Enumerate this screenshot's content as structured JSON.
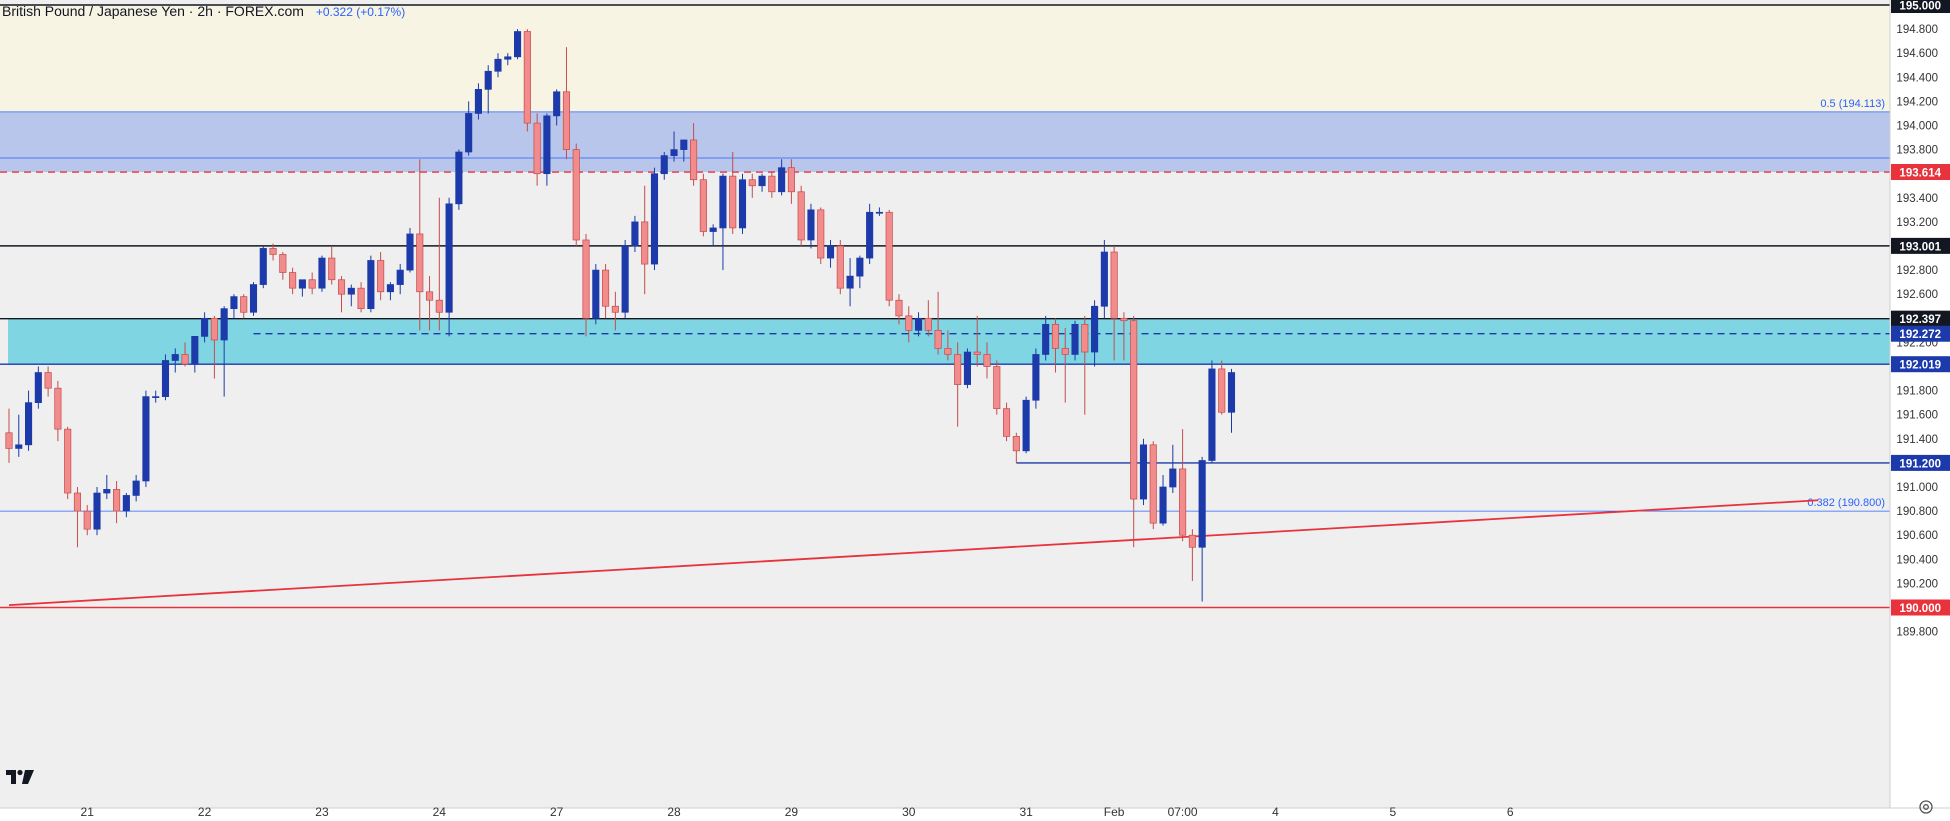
{
  "header": {
    "title": "British Pound / Japanese Yen · 2h · FOREX.com",
    "change": "+0.322 (+0.17%)"
  },
  "icons": {
    "logo": "tradingview-logo-icon",
    "settings": "gear-icon"
  },
  "colors": {
    "bull": "#1c3aa9",
    "bear": "#f28b8b",
    "bear_border": "#c54b4b",
    "supply_zone": "#f7f4e3",
    "resistance_zone": "#b9c6ec",
    "support_zone": "#7fd6e2",
    "trendline": "#e8323c"
  },
  "chart_data": {
    "type": "candlestick",
    "symbol": "GBPJPY",
    "timeframe": "2h",
    "ylim": [
      189.8,
      195.0
    ],
    "y_ticks": [
      "195.000",
      "194.800",
      "194.600",
      "194.400",
      "194.200",
      "194.000",
      "193.800",
      "193.600",
      "193.400",
      "193.200",
      "193.000",
      "192.800",
      "192.600",
      "192.400",
      "192.200",
      "192.000",
      "191.800",
      "191.600",
      "191.400",
      "191.200",
      "191.000",
      "190.800",
      "190.600",
      "190.400",
      "190.200",
      "190.000",
      "189.800"
    ],
    "x_ticks": [
      "21",
      "22",
      "23",
      "24",
      "27",
      "28",
      "29",
      "30",
      "31",
      "Feb",
      "07:00",
      "4",
      "5",
      "6"
    ],
    "zones": [
      {
        "from": 194.113,
        "to": 195.0,
        "color": "#f7f4e3"
      },
      {
        "from": 193.614,
        "to": 194.113,
        "color": "#b9c6ec"
      },
      {
        "from": 192.019,
        "to": 192.397,
        "color": "#7fd6e2"
      }
    ],
    "levels": [
      {
        "value": 195.0,
        "label": "195.000",
        "style": "solid",
        "color": "#131722",
        "badge": "#131722"
      },
      {
        "value": 194.113,
        "annotation": "0.5 (194.113)",
        "style": "thin",
        "color": "#2962ff"
      },
      {
        "value": 193.73,
        "style": "thin",
        "color": "#2962ff"
      },
      {
        "value": 193.614,
        "label": "193.614",
        "style": "dashed",
        "color": "#e8323c",
        "badge": "#e8323c"
      },
      {
        "value": 193.001,
        "label": "193.001",
        "style": "solid",
        "color": "#131722",
        "badge": "#131722"
      },
      {
        "value": 192.397,
        "label": "192.397",
        "style": "solid",
        "color": "#131722",
        "badge": "#131722"
      },
      {
        "value": 192.272,
        "label": "192.272",
        "style": "dashed",
        "color": "#1c3aa9",
        "badge": "#1c3aa9"
      },
      {
        "value": 192.019,
        "label": "192.019",
        "style": "solid",
        "color": "#1c3aa9",
        "badge": "#1c3aa9"
      },
      {
        "value": 191.2,
        "label": "191.200",
        "style": "solid",
        "color": "#1c3aa9",
        "badge": "#1c3aa9"
      },
      {
        "value": 190.8,
        "annotation": "0.382 (190.800)",
        "style": "thin",
        "color": "#2962ff"
      },
      {
        "value": 190.0,
        "label": "190.000",
        "style": "solid",
        "color": "#e8323c",
        "badge": "#e8323c"
      }
    ],
    "trendline": {
      "start": {
        "bar": 0,
        "price": 190.02
      },
      "end": {
        "bar": 185,
        "price": 190.89
      }
    },
    "candles": [
      {
        "o": 191.45,
        "h": 191.65,
        "l": 191.2,
        "c": 191.32
      },
      {
        "o": 191.32,
        "h": 191.6,
        "l": 191.25,
        "c": 191.35
      },
      {
        "o": 191.35,
        "h": 191.8,
        "l": 191.3,
        "c": 191.7
      },
      {
        "o": 191.7,
        "h": 192.0,
        "l": 191.65,
        "c": 191.95
      },
      {
        "o": 191.95,
        "h": 192.0,
        "l": 191.75,
        "c": 191.82
      },
      {
        "o": 191.82,
        "h": 191.88,
        "l": 191.38,
        "c": 191.48
      },
      {
        "o": 191.48,
        "h": 191.5,
        "l": 190.9,
        "c": 190.95
      },
      {
        "o": 190.95,
        "h": 191.0,
        "l": 190.5,
        "c": 190.8
      },
      {
        "o": 190.8,
        "h": 190.85,
        "l": 190.6,
        "c": 190.65
      },
      {
        "o": 190.65,
        "h": 191.0,
        "l": 190.6,
        "c": 190.95
      },
      {
        "o": 190.95,
        "h": 191.1,
        "l": 190.9,
        "c": 190.98
      },
      {
        "o": 190.98,
        "h": 191.05,
        "l": 190.7,
        "c": 190.8
      },
      {
        "o": 190.8,
        "h": 190.95,
        "l": 190.75,
        "c": 190.93
      },
      {
        "o": 190.93,
        "h": 191.1,
        "l": 190.88,
        "c": 191.05
      },
      {
        "o": 191.05,
        "h": 191.8,
        "l": 191.0,
        "c": 191.75
      },
      {
        "o": 191.75,
        "h": 191.8,
        "l": 191.7,
        "c": 191.75
      },
      {
        "o": 191.75,
        "h": 192.1,
        "l": 191.72,
        "c": 192.05
      },
      {
        "o": 192.05,
        "h": 192.15,
        "l": 191.95,
        "c": 192.1
      },
      {
        "o": 192.1,
        "h": 192.2,
        "l": 192.0,
        "c": 192.02
      },
      {
        "o": 192.02,
        "h": 192.25,
        "l": 191.95,
        "c": 192.25
      },
      {
        "o": 192.25,
        "h": 192.45,
        "l": 192.2,
        "c": 192.4
      },
      {
        "o": 192.4,
        "h": 192.42,
        "l": 191.9,
        "c": 192.22
      },
      {
        "o": 192.22,
        "h": 192.5,
        "l": 191.75,
        "c": 192.48
      },
      {
        "o": 192.48,
        "h": 192.6,
        "l": 192.4,
        "c": 192.58
      },
      {
        "o": 192.58,
        "h": 192.6,
        "l": 192.4,
        "c": 192.45
      },
      {
        "o": 192.45,
        "h": 192.7,
        "l": 192.42,
        "c": 192.68
      },
      {
        "o": 192.68,
        "h": 193.0,
        "l": 192.65,
        "c": 192.98
      },
      {
        "o": 192.98,
        "h": 193.02,
        "l": 192.88,
        "c": 192.93
      },
      {
        "o": 192.93,
        "h": 192.95,
        "l": 192.72,
        "c": 192.78
      },
      {
        "o": 192.78,
        "h": 192.82,
        "l": 192.6,
        "c": 192.65
      },
      {
        "o": 192.65,
        "h": 192.72,
        "l": 192.58,
        "c": 192.72
      },
      {
        "o": 192.72,
        "h": 192.78,
        "l": 192.6,
        "c": 192.65
      },
      {
        "o": 192.65,
        "h": 192.92,
        "l": 192.62,
        "c": 192.9
      },
      {
        "o": 192.9,
        "h": 193.0,
        "l": 192.68,
        "c": 192.72
      },
      {
        "o": 192.72,
        "h": 192.75,
        "l": 192.45,
        "c": 192.6
      },
      {
        "o": 192.6,
        "h": 192.68,
        "l": 192.5,
        "c": 192.65
      },
      {
        "o": 192.65,
        "h": 192.7,
        "l": 192.45,
        "c": 192.48
      },
      {
        "o": 192.48,
        "h": 192.92,
        "l": 192.45,
        "c": 192.88
      },
      {
        "o": 192.88,
        "h": 192.95,
        "l": 192.55,
        "c": 192.62
      },
      {
        "o": 192.62,
        "h": 192.7,
        "l": 192.55,
        "c": 192.68
      },
      {
        "o": 192.68,
        "h": 192.85,
        "l": 192.6,
        "c": 192.8
      },
      {
        "o": 192.8,
        "h": 193.15,
        "l": 192.78,
        "c": 193.1
      },
      {
        "o": 193.1,
        "h": 193.72,
        "l": 192.3,
        "c": 192.62
      },
      {
        "o": 192.62,
        "h": 192.75,
        "l": 192.3,
        "c": 192.55
      },
      {
        "o": 192.55,
        "h": 193.4,
        "l": 192.3,
        "c": 192.45
      },
      {
        "o": 192.45,
        "h": 193.4,
        "l": 192.25,
        "c": 193.35
      },
      {
        "o": 193.35,
        "h": 193.8,
        "l": 193.3,
        "c": 193.78
      },
      {
        "o": 193.78,
        "h": 194.2,
        "l": 193.75,
        "c": 194.1
      },
      {
        "o": 194.1,
        "h": 194.35,
        "l": 194.05,
        "c": 194.3
      },
      {
        "o": 194.3,
        "h": 194.5,
        "l": 194.1,
        "c": 194.45
      },
      {
        "o": 194.45,
        "h": 194.6,
        "l": 194.4,
        "c": 194.55
      },
      {
        "o": 194.55,
        "h": 194.6,
        "l": 194.5,
        "c": 194.57
      },
      {
        "o": 194.57,
        "h": 194.8,
        "l": 194.55,
        "c": 194.78
      },
      {
        "o": 194.78,
        "h": 194.8,
        "l": 193.95,
        "c": 194.02
      },
      {
        "o": 194.02,
        "h": 194.1,
        "l": 193.5,
        "c": 193.6
      },
      {
        "o": 193.6,
        "h": 194.1,
        "l": 193.5,
        "c": 194.08
      },
      {
        "o": 194.08,
        "h": 194.3,
        "l": 194.0,
        "c": 194.28
      },
      {
        "o": 194.28,
        "h": 194.65,
        "l": 193.72,
        "c": 193.8
      },
      {
        "o": 193.8,
        "h": 193.85,
        "l": 193.0,
        "c": 193.05
      },
      {
        "o": 193.05,
        "h": 193.1,
        "l": 192.25,
        "c": 192.4
      },
      {
        "o": 192.4,
        "h": 192.85,
        "l": 192.35,
        "c": 192.8
      },
      {
        "o": 192.8,
        "h": 192.85,
        "l": 192.4,
        "c": 192.5
      },
      {
        "o": 192.5,
        "h": 192.62,
        "l": 192.3,
        "c": 192.45
      },
      {
        "o": 192.45,
        "h": 193.05,
        "l": 192.4,
        "c": 193.0
      },
      {
        "o": 193.0,
        "h": 193.25,
        "l": 192.95,
        "c": 193.2
      },
      {
        "o": 193.2,
        "h": 193.5,
        "l": 192.6,
        "c": 192.85
      },
      {
        "o": 192.85,
        "h": 193.65,
        "l": 192.8,
        "c": 193.6
      },
      {
        "o": 193.6,
        "h": 193.78,
        "l": 193.55,
        "c": 193.75
      },
      {
        "o": 193.75,
        "h": 193.95,
        "l": 193.7,
        "c": 193.8
      },
      {
        "o": 193.8,
        "h": 193.88,
        "l": 193.7,
        "c": 193.88
      },
      {
        "o": 193.88,
        "h": 194.02,
        "l": 193.5,
        "c": 193.55
      },
      {
        "o": 193.55,
        "h": 193.6,
        "l": 193.08,
        "c": 193.12
      },
      {
        "o": 193.12,
        "h": 193.18,
        "l": 193.0,
        "c": 193.15
      },
      {
        "o": 193.15,
        "h": 193.6,
        "l": 192.8,
        "c": 193.58
      },
      {
        "o": 193.58,
        "h": 193.78,
        "l": 193.1,
        "c": 193.15
      },
      {
        "o": 193.15,
        "h": 193.6,
        "l": 193.1,
        "c": 193.55
      },
      {
        "o": 193.55,
        "h": 193.6,
        "l": 193.4,
        "c": 193.5
      },
      {
        "o": 193.5,
        "h": 193.6,
        "l": 193.45,
        "c": 193.58
      },
      {
        "o": 193.58,
        "h": 193.62,
        "l": 193.4,
        "c": 193.45
      },
      {
        "o": 193.45,
        "h": 193.72,
        "l": 193.42,
        "c": 193.65
      },
      {
        "o": 193.65,
        "h": 193.72,
        "l": 193.35,
        "c": 193.45
      },
      {
        "o": 193.45,
        "h": 193.5,
        "l": 193.0,
        "c": 193.05
      },
      {
        "o": 193.05,
        "h": 193.35,
        "l": 192.98,
        "c": 193.3
      },
      {
        "o": 193.3,
        "h": 193.32,
        "l": 192.85,
        "c": 192.9
      },
      {
        "o": 192.9,
        "h": 193.05,
        "l": 192.82,
        "c": 193.0
      },
      {
        "o": 193.0,
        "h": 193.05,
        "l": 192.6,
        "c": 192.65
      },
      {
        "o": 192.65,
        "h": 192.9,
        "l": 192.5,
        "c": 192.75
      },
      {
        "o": 192.75,
        "h": 192.92,
        "l": 192.65,
        "c": 192.9
      },
      {
        "o": 192.9,
        "h": 193.35,
        "l": 192.85,
        "c": 193.28
      },
      {
        "o": 193.28,
        "h": 193.32,
        "l": 193.25,
        "c": 193.28
      },
      {
        "o": 193.28,
        "h": 193.3,
        "l": 192.5,
        "c": 192.55
      },
      {
        "o": 192.55,
        "h": 192.6,
        "l": 192.35,
        "c": 192.42
      },
      {
        "o": 192.42,
        "h": 192.5,
        "l": 192.2,
        "c": 192.3
      },
      {
        "o": 192.3,
        "h": 192.45,
        "l": 192.25,
        "c": 192.4
      },
      {
        "o": 192.4,
        "h": 192.55,
        "l": 192.25,
        "c": 192.3
      },
      {
        "o": 192.3,
        "h": 192.62,
        "l": 192.1,
        "c": 192.15
      },
      {
        "o": 192.15,
        "h": 192.3,
        "l": 192.05,
        "c": 192.1
      },
      {
        "o": 192.1,
        "h": 192.2,
        "l": 191.5,
        "c": 191.85
      },
      {
        "o": 191.85,
        "h": 192.15,
        "l": 191.82,
        "c": 192.12
      },
      {
        "o": 192.12,
        "h": 192.42,
        "l": 192.0,
        "c": 192.1
      },
      {
        "o": 192.1,
        "h": 192.2,
        "l": 191.9,
        "c": 192.0
      },
      {
        "o": 192.0,
        "h": 192.05,
        "l": 191.6,
        "c": 191.65
      },
      {
        "o": 191.65,
        "h": 191.7,
        "l": 191.38,
        "c": 191.42
      },
      {
        "o": 191.42,
        "h": 191.45,
        "l": 191.2,
        "c": 191.3
      },
      {
        "o": 191.3,
        "h": 191.75,
        "l": 191.28,
        "c": 191.72
      },
      {
        "o": 191.72,
        "h": 192.15,
        "l": 191.65,
        "c": 192.1
      },
      {
        "o": 192.1,
        "h": 192.42,
        "l": 192.05,
        "c": 192.35
      },
      {
        "o": 192.35,
        "h": 192.4,
        "l": 191.95,
        "c": 192.15
      },
      {
        "o": 192.15,
        "h": 192.32,
        "l": 191.7,
        "c": 192.1
      },
      {
        "o": 192.1,
        "h": 192.38,
        "l": 192.05,
        "c": 192.35
      },
      {
        "o": 192.35,
        "h": 192.42,
        "l": 191.6,
        "c": 192.12
      },
      {
        "o": 192.12,
        "h": 192.55,
        "l": 192.0,
        "c": 192.5
      },
      {
        "o": 192.5,
        "h": 193.05,
        "l": 192.4,
        "c": 192.95
      },
      {
        "o": 192.95,
        "h": 193.0,
        "l": 192.05,
        "c": 192.4
      },
      {
        "o": 192.4,
        "h": 192.45,
        "l": 192.05,
        "c": 192.38
      },
      {
        "o": 192.38,
        "h": 192.42,
        "l": 190.5,
        "c": 190.9
      },
      {
        "o": 190.9,
        "h": 191.4,
        "l": 190.85,
        "c": 191.35
      },
      {
        "o": 191.35,
        "h": 191.38,
        "l": 190.65,
        "c": 190.7
      },
      {
        "o": 190.7,
        "h": 191.1,
        "l": 190.68,
        "c": 191.0
      },
      {
        "o": 191.0,
        "h": 191.35,
        "l": 190.95,
        "c": 191.15
      },
      {
        "o": 191.15,
        "h": 191.48,
        "l": 190.55,
        "c": 190.6
      },
      {
        "o": 190.6,
        "h": 190.65,
        "l": 190.22,
        "c": 190.5
      },
      {
        "o": 190.5,
        "h": 191.25,
        "l": 190.05,
        "c": 191.22
      },
      {
        "o": 191.22,
        "h": 192.05,
        "l": 191.2,
        "c": 191.98
      },
      {
        "o": 191.98,
        "h": 192.05,
        "l": 191.6,
        "c": 191.62
      },
      {
        "o": 191.62,
        "h": 191.98,
        "l": 191.45,
        "c": 191.95
      }
    ]
  }
}
